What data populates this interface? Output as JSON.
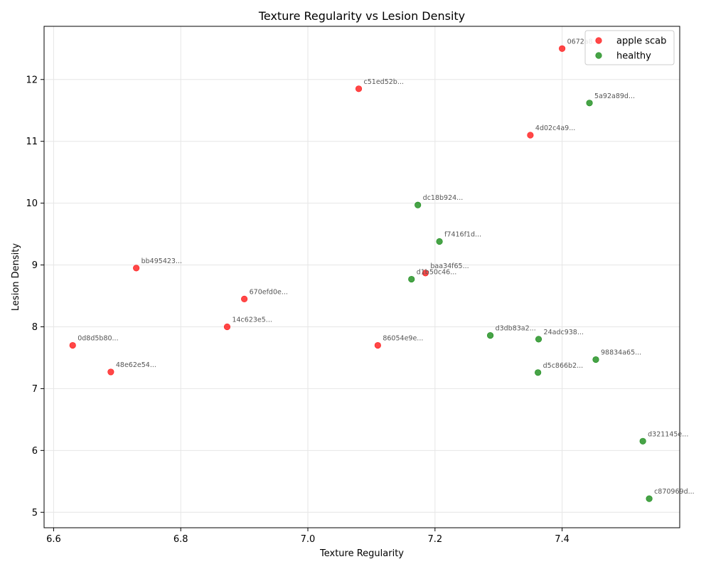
{
  "chart_data": {
    "type": "scatter",
    "title": "Texture Regularity vs Lesion Density",
    "xlabel": "Texture Regularity",
    "ylabel": "Lesion Density",
    "xlim": [
      6.585,
      7.585
    ],
    "ylim": [
      4.75,
      12.86
    ],
    "xticks": [
      "6.6",
      "6.8",
      "7.0",
      "7.2",
      "7.4"
    ],
    "yticks": [
      "5",
      "6",
      "7",
      "8",
      "9",
      "10",
      "11",
      "12"
    ],
    "grid": true,
    "legend_position": "top-right",
    "series": [
      {
        "name": "apple scab",
        "color": "#ff0000",
        "points": [
          {
            "x": 7.4,
            "y": 12.5,
            "label": "0672a8..."
          },
          {
            "x": 7.08,
            "y": 11.85,
            "label": "c51ed52b..."
          },
          {
            "x": 7.35,
            "y": 11.1,
            "label": "4d02c4a9..."
          },
          {
            "x": 6.73,
            "y": 8.95,
            "label": "bb495423..."
          },
          {
            "x": 7.185,
            "y": 8.87,
            "label": "baa34f65..."
          },
          {
            "x": 6.9,
            "y": 8.45,
            "label": "670efd0e..."
          },
          {
            "x": 6.873,
            "y": 8.0,
            "label": "14c623e5..."
          },
          {
            "x": 6.63,
            "y": 7.7,
            "label": "0d8d5b80..."
          },
          {
            "x": 7.11,
            "y": 7.7,
            "label": "86054e9e..."
          },
          {
            "x": 6.69,
            "y": 7.27,
            "label": "48e62e54..."
          }
        ]
      },
      {
        "name": "healthy",
        "color": "#008000",
        "points": [
          {
            "x": 7.443,
            "y": 11.62,
            "label": "5a92a89d..."
          },
          {
            "x": 7.173,
            "y": 9.97,
            "label": "dc18b924..."
          },
          {
            "x": 7.207,
            "y": 9.38,
            "label": "f7416f1d..."
          },
          {
            "x": 7.163,
            "y": 8.77,
            "label": "d1b50c46..."
          },
          {
            "x": 7.287,
            "y": 7.86,
            "label": "d3db83a2..."
          },
          {
            "x": 7.363,
            "y": 7.8,
            "label": "24adc938..."
          },
          {
            "x": 7.453,
            "y": 7.47,
            "label": "98834a65..."
          },
          {
            "x": 7.362,
            "y": 7.26,
            "label": "d5c866b2..."
          },
          {
            "x": 7.527,
            "y": 6.15,
            "label": "d321145e..."
          },
          {
            "x": 7.537,
            "y": 5.22,
            "label": "c870969d..."
          }
        ]
      }
    ]
  }
}
